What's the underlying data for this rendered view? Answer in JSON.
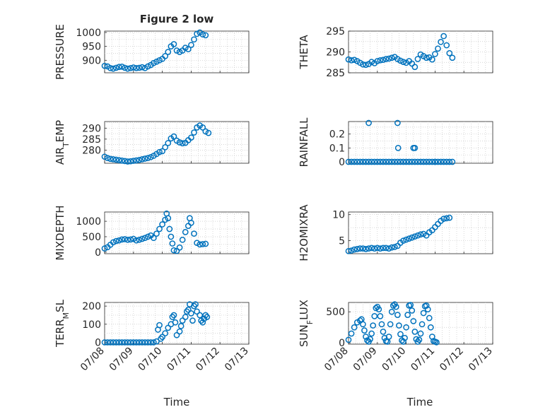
{
  "figure": {
    "title": "Figure 2 low",
    "xlabel": "Time",
    "x_ticks": [
      "07/08",
      "07/09",
      "07/10",
      "07/11",
      "07/12",
      "07/13"
    ],
    "marker_color": "#0072bd"
  },
  "chart_data": [
    {
      "type": "scatter",
      "name": "PRESSURE",
      "ylabel_main": "PRESSURE",
      "ylabel_sub": "",
      "xlim": [
        0,
        5
      ],
      "ylim": [
        855,
        1005
      ],
      "yticks": [
        900,
        950,
        1000
      ],
      "show_xticklabels": false,
      "title": "Figure 2 low",
      "points": [
        [
          0.0,
          880
        ],
        [
          0.1,
          878
        ],
        [
          0.2,
          872
        ],
        [
          0.3,
          870
        ],
        [
          0.4,
          873
        ],
        [
          0.5,
          876
        ],
        [
          0.6,
          877
        ],
        [
          0.7,
          873
        ],
        [
          0.8,
          870
        ],
        [
          0.9,
          872
        ],
        [
          1.0,
          874
        ],
        [
          1.1,
          872
        ],
        [
          1.2,
          873
        ],
        [
          1.3,
          875
        ],
        [
          1.4,
          872
        ],
        [
          1.5,
          878
        ],
        [
          1.6,
          883
        ],
        [
          1.7,
          890
        ],
        [
          1.8,
          895
        ],
        [
          1.9,
          900
        ],
        [
          2.0,
          905
        ],
        [
          2.1,
          915
        ],
        [
          2.2,
          930
        ],
        [
          2.3,
          950
        ],
        [
          2.4,
          958
        ],
        [
          2.5,
          935
        ],
        [
          2.6,
          930
        ],
        [
          2.7,
          935
        ],
        [
          2.8,
          945
        ],
        [
          2.9,
          940
        ],
        [
          3.0,
          955
        ],
        [
          3.1,
          975
        ],
        [
          3.2,
          995
        ],
        [
          3.3,
          1000
        ],
        [
          3.4,
          993
        ],
        [
          3.5,
          990
        ]
      ]
    },
    {
      "type": "scatter",
      "name": "THETA",
      "ylabel_main": "THETA",
      "ylabel_sub": "",
      "xlim": [
        0,
        5
      ],
      "ylim": [
        285,
        295
      ],
      "yticks": [
        285,
        290,
        295
      ],
      "show_xticklabels": false,
      "points": [
        [
          0.0,
          288.2
        ],
        [
          0.1,
          288.0
        ],
        [
          0.2,
          288.1
        ],
        [
          0.3,
          287.8
        ],
        [
          0.4,
          287.4
        ],
        [
          0.5,
          287.0
        ],
        [
          0.6,
          286.9
        ],
        [
          0.7,
          287.1
        ],
        [
          0.8,
          287.6
        ],
        [
          0.9,
          287.3
        ],
        [
          1.0,
          287.8
        ],
        [
          1.1,
          288.0
        ],
        [
          1.2,
          288.1
        ],
        [
          1.3,
          288.3
        ],
        [
          1.4,
          288.4
        ],
        [
          1.5,
          288.6
        ],
        [
          1.6,
          288.8
        ],
        [
          1.7,
          288.3
        ],
        [
          1.8,
          287.9
        ],
        [
          1.9,
          287.6
        ],
        [
          2.0,
          287.4
        ],
        [
          2.1,
          287.8
        ],
        [
          2.2,
          287.2
        ],
        [
          2.3,
          286.4
        ],
        [
          2.4,
          288.3
        ],
        [
          2.5,
          289.4
        ],
        [
          2.6,
          289.0
        ],
        [
          2.7,
          288.6
        ],
        [
          2.8,
          288.7
        ],
        [
          2.9,
          288.2
        ],
        [
          3.0,
          289.5
        ],
        [
          3.1,
          290.8
        ],
        [
          3.2,
          292.4
        ],
        [
          3.3,
          293.8
        ],
        [
          3.4,
          291.6
        ],
        [
          3.5,
          289.7
        ],
        [
          3.6,
          288.6
        ]
      ]
    },
    {
      "type": "scatter",
      "name": "AIR_TEMP",
      "ylabel_main": "AIR",
      "ylabel_sub": "T",
      "ylabel_rest": "EMP",
      "xlim": [
        0,
        5
      ],
      "ylim": [
        274,
        293
      ],
      "yticks": [
        280,
        285,
        290
      ],
      "show_xticklabels": false,
      "points": [
        [
          0.0,
          277.0
        ],
        [
          0.1,
          276.4
        ],
        [
          0.2,
          276.0
        ],
        [
          0.3,
          275.8
        ],
        [
          0.4,
          275.6
        ],
        [
          0.5,
          275.4
        ],
        [
          0.6,
          275.2
        ],
        [
          0.7,
          275.0
        ],
        [
          0.8,
          274.8
        ],
        [
          0.9,
          274.9
        ],
        [
          1.0,
          275.1
        ],
        [
          1.1,
          275.3
        ],
        [
          1.2,
          275.5
        ],
        [
          1.3,
          275.8
        ],
        [
          1.4,
          276.1
        ],
        [
          1.5,
          276.4
        ],
        [
          1.6,
          276.8
        ],
        [
          1.7,
          277.4
        ],
        [
          1.8,
          278.2
        ],
        [
          1.9,
          279.1
        ],
        [
          2.0,
          279.5
        ],
        [
          2.1,
          281.3
        ],
        [
          2.2,
          283.2
        ],
        [
          2.3,
          285.3
        ],
        [
          2.4,
          286.2
        ],
        [
          2.5,
          284.3
        ],
        [
          2.6,
          283.5
        ],
        [
          2.7,
          283.1
        ],
        [
          2.8,
          283.3
        ],
        [
          2.9,
          284.5
        ],
        [
          3.0,
          285.7
        ],
        [
          3.1,
          288.0
        ],
        [
          3.2,
          290.3
        ],
        [
          3.3,
          291.2
        ],
        [
          3.4,
          290.3
        ],
        [
          3.5,
          288.5
        ],
        [
          3.6,
          287.8
        ]
      ]
    },
    {
      "type": "scatter",
      "name": "RAINFALL",
      "ylabel_main": "RAINFALL",
      "ylabel_sub": "",
      "xlim": [
        0,
        5
      ],
      "ylim": [
        -0.01,
        0.29
      ],
      "yticks": [
        0,
        0.1,
        0.2
      ],
      "ytick_labels": [
        "0",
        "0.1",
        "0.2"
      ],
      "show_xticklabels": false,
      "points": [
        [
          0.0,
          0
        ],
        [
          0.1,
          0
        ],
        [
          0.2,
          0
        ],
        [
          0.3,
          0
        ],
        [
          0.4,
          0
        ],
        [
          0.5,
          0
        ],
        [
          0.6,
          0
        ],
        [
          0.7,
          0
        ],
        [
          0.8,
          0
        ],
        [
          0.9,
          0
        ],
        [
          1.0,
          0
        ],
        [
          1.1,
          0
        ],
        [
          1.2,
          0
        ],
        [
          1.3,
          0
        ],
        [
          1.4,
          0
        ],
        [
          1.5,
          0
        ],
        [
          1.6,
          0
        ],
        [
          1.7,
          0
        ],
        [
          1.8,
          0
        ],
        [
          1.9,
          0
        ],
        [
          2.0,
          0
        ],
        [
          2.1,
          0
        ],
        [
          2.2,
          0
        ],
        [
          2.3,
          0
        ],
        [
          2.4,
          0
        ],
        [
          2.5,
          0
        ],
        [
          2.6,
          0
        ],
        [
          2.7,
          0
        ],
        [
          2.8,
          0
        ],
        [
          2.9,
          0
        ],
        [
          3.0,
          0
        ],
        [
          3.1,
          0
        ],
        [
          3.2,
          0
        ],
        [
          3.3,
          0
        ],
        [
          3.4,
          0
        ],
        [
          3.5,
          0
        ],
        [
          3.6,
          0
        ],
        [
          3.0,
          0
        ],
        [
          0.7,
          0.28
        ],
        [
          1.7,
          0.28
        ],
        [
          1.72,
          0.1
        ],
        [
          2.25,
          0.1
        ],
        [
          2.3,
          0.1
        ]
      ]
    },
    {
      "type": "scatter",
      "name": "MIXDEPTH",
      "ylabel_main": "MIXDEPTH",
      "ylabel_sub": "",
      "xlim": [
        0,
        5
      ],
      "ylim": [
        -50,
        1300
      ],
      "yticks": [
        0,
        500,
        1000
      ],
      "show_xticklabels": false,
      "points": [
        [
          0.0,
          120
        ],
        [
          0.1,
          160
        ],
        [
          0.2,
          240
        ],
        [
          0.3,
          320
        ],
        [
          0.4,
          360
        ],
        [
          0.5,
          380
        ],
        [
          0.6,
          410
        ],
        [
          0.7,
          420
        ],
        [
          0.8,
          400
        ],
        [
          0.9,
          410
        ],
        [
          1.0,
          430
        ],
        [
          1.1,
          380
        ],
        [
          1.2,
          400
        ],
        [
          1.3,
          430
        ],
        [
          1.4,
          460
        ],
        [
          1.5,
          500
        ],
        [
          1.6,
          540
        ],
        [
          1.7,
          460
        ],
        [
          1.8,
          600
        ],
        [
          1.9,
          750
        ],
        [
          2.0,
          900
        ],
        [
          2.1,
          1050
        ],
        [
          2.15,
          1250
        ],
        [
          2.2,
          1100
        ],
        [
          2.25,
          750
        ],
        [
          2.3,
          500
        ],
        [
          2.35,
          280
        ],
        [
          2.4,
          60
        ],
        [
          2.5,
          40
        ],
        [
          2.6,
          150
        ],
        [
          2.7,
          400
        ],
        [
          2.8,
          650
        ],
        [
          2.9,
          850
        ],
        [
          2.95,
          1100
        ],
        [
          3.0,
          950
        ],
        [
          3.1,
          600
        ],
        [
          3.2,
          300
        ],
        [
          3.3,
          250
        ],
        [
          3.4,
          260
        ],
        [
          3.5,
          270
        ]
      ]
    },
    {
      "type": "scatter",
      "name": "H2OMIXRA",
      "ylabel_main": "H2OMIXRA",
      "ylabel_sub": "",
      "xlim": [
        0,
        5
      ],
      "ylim": [
        2.5,
        10.5
      ],
      "yticks": [
        5,
        10
      ],
      "show_xticklabels": false,
      "points": [
        [
          0.0,
          3.0
        ],
        [
          0.1,
          3.1
        ],
        [
          0.2,
          3.3
        ],
        [
          0.3,
          3.4
        ],
        [
          0.4,
          3.5
        ],
        [
          0.5,
          3.5
        ],
        [
          0.6,
          3.4
        ],
        [
          0.7,
          3.5
        ],
        [
          0.8,
          3.6
        ],
        [
          0.9,
          3.5
        ],
        [
          1.0,
          3.6
        ],
        [
          1.1,
          3.5
        ],
        [
          1.2,
          3.6
        ],
        [
          1.3,
          3.6
        ],
        [
          1.4,
          3.5
        ],
        [
          1.5,
          3.7
        ],
        [
          1.6,
          3.8
        ],
        [
          1.7,
          4.0
        ],
        [
          1.8,
          4.6
        ],
        [
          1.9,
          5.0
        ],
        [
          2.0,
          5.2
        ],
        [
          2.1,
          5.4
        ],
        [
          2.2,
          5.6
        ],
        [
          2.3,
          5.8
        ],
        [
          2.4,
          6.0
        ],
        [
          2.5,
          6.2
        ],
        [
          2.6,
          6.3
        ],
        [
          2.7,
          6.0
        ],
        [
          2.8,
          6.6
        ],
        [
          2.9,
          7.0
        ],
        [
          3.0,
          7.6
        ],
        [
          3.1,
          8.2
        ],
        [
          3.2,
          8.8
        ],
        [
          3.3,
          9.2
        ],
        [
          3.4,
          9.3
        ],
        [
          3.5,
          9.4
        ]
      ]
    },
    {
      "type": "scatter",
      "name": "TERR_MSL",
      "ylabel_main": "TERR",
      "ylabel_sub": "M",
      "ylabel_rest": "SL",
      "xlim": [
        0,
        5
      ],
      "ylim": [
        -10,
        220
      ],
      "yticks": [
        0,
        100,
        200
      ],
      "show_xticklabels": true,
      "points": [
        [
          0.0,
          0
        ],
        [
          0.1,
          0
        ],
        [
          0.2,
          0
        ],
        [
          0.3,
          0
        ],
        [
          0.4,
          0
        ],
        [
          0.5,
          0
        ],
        [
          0.6,
          0
        ],
        [
          0.7,
          0
        ],
        [
          0.8,
          0
        ],
        [
          0.9,
          0
        ],
        [
          1.0,
          0
        ],
        [
          1.1,
          0
        ],
        [
          1.2,
          0
        ],
        [
          1.3,
          0
        ],
        [
          1.4,
          0
        ],
        [
          1.5,
          0
        ],
        [
          1.6,
          0
        ],
        [
          1.7,
          0
        ],
        [
          1.8,
          5
        ],
        [
          1.85,
          70
        ],
        [
          1.9,
          95
        ],
        [
          1.95,
          20
        ],
        [
          2.0,
          30
        ],
        [
          2.1,
          50
        ],
        [
          2.2,
          80
        ],
        [
          2.3,
          100
        ],
        [
          2.35,
          140
        ],
        [
          2.4,
          150
        ],
        [
          2.45,
          110
        ],
        [
          2.5,
          40
        ],
        [
          2.6,
          60
        ],
        [
          2.65,
          90
        ],
        [
          2.7,
          120
        ],
        [
          2.8,
          140
        ],
        [
          2.85,
          170
        ],
        [
          2.9,
          180
        ],
        [
          2.95,
          210
        ],
        [
          3.0,
          160
        ],
        [
          3.05,
          120
        ],
        [
          3.1,
          200
        ],
        [
          3.15,
          210
        ],
        [
          3.2,
          170
        ],
        [
          3.3,
          150
        ],
        [
          3.35,
          120
        ],
        [
          3.4,
          110
        ],
        [
          3.45,
          130
        ],
        [
          3.5,
          150
        ],
        [
          3.55,
          140
        ]
      ]
    },
    {
      "type": "scatter",
      "name": "SUN_FLUX",
      "ylabel_main": "SUN",
      "ylabel_sub": "F",
      "ylabel_rest": "LUX",
      "xlim": [
        0,
        5
      ],
      "ylim": [
        -20,
        650
      ],
      "yticks": [
        0,
        500
      ],
      "show_xticklabels": true,
      "points": [
        [
          0.0,
          50
        ],
        [
          0.1,
          150
        ],
        [
          0.2,
          250
        ],
        [
          0.3,
          330
        ],
        [
          0.4,
          360
        ],
        [
          0.45,
          380
        ],
        [
          0.5,
          300
        ],
        [
          0.55,
          200
        ],
        [
          0.6,
          100
        ],
        [
          0.65,
          40
        ],
        [
          0.7,
          20
        ],
        [
          0.75,
          60
        ],
        [
          0.8,
          150
        ],
        [
          0.85,
          280
        ],
        [
          0.9,
          430
        ],
        [
          0.95,
          560
        ],
        [
          1.0,
          580
        ],
        [
          1.05,
          540
        ],
        [
          1.1,
          430
        ],
        [
          1.15,
          300
        ],
        [
          1.2,
          180
        ],
        [
          1.25,
          80
        ],
        [
          1.3,
          30
        ],
        [
          1.35,
          20
        ],
        [
          1.4,
          100
        ],
        [
          1.45,
          300
        ],
        [
          1.5,
          500
        ],
        [
          1.55,
          600
        ],
        [
          1.6,
          620
        ],
        [
          1.65,
          580
        ],
        [
          1.7,
          450
        ],
        [
          1.75,
          280
        ],
        [
          1.8,
          140
        ],
        [
          1.85,
          40
        ],
        [
          1.9,
          20
        ],
        [
          1.95,
          80
        ],
        [
          2.0,
          250
        ],
        [
          2.05,
          450
        ],
        [
          2.1,
          600
        ],
        [
          2.15,
          610
        ],
        [
          2.2,
          520
        ],
        [
          2.25,
          350
        ],
        [
          2.3,
          180
        ],
        [
          2.35,
          60
        ],
        [
          2.4,
          20
        ],
        [
          2.45,
          50
        ],
        [
          2.5,
          150
        ],
        [
          2.55,
          300
        ],
        [
          2.6,
          480
        ],
        [
          2.65,
          590
        ],
        [
          2.7,
          600
        ],
        [
          2.75,
          540
        ],
        [
          2.8,
          400
        ],
        [
          2.85,
          250
        ],
        [
          2.9,
          100
        ],
        [
          2.95,
          30
        ],
        [
          3.0,
          20
        ],
        [
          3.05,
          10
        ]
      ]
    }
  ]
}
